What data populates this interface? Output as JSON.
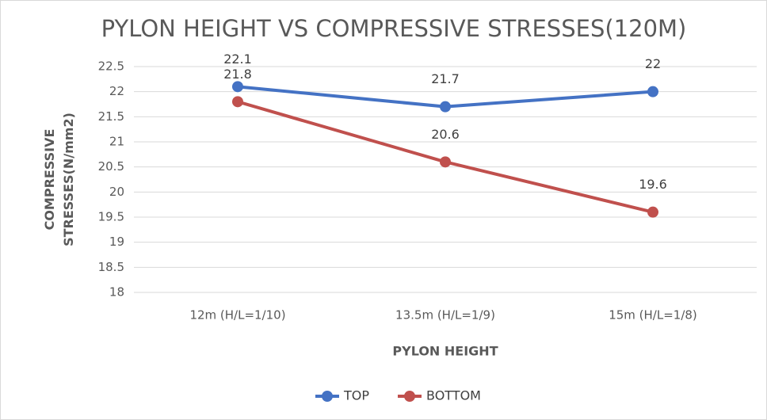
{
  "chart_data": {
    "type": "line",
    "title": "PYLON HEIGHT VS COMPRESSIVE STRESSES(120M)",
    "x_label": "PYLON HEIGHT",
    "y_label": "COMPRESSIVE STRESSES(N/mm2)",
    "categories": [
      "12m (H/L=1/10)",
      "13.5m (H/L=1/9)",
      "15m (H/L=1/8)"
    ],
    "series": [
      {
        "name": "TOP",
        "color": "#4472c4",
        "values": [
          22.1,
          21.7,
          22
        ]
      },
      {
        "name": "BOTTOM",
        "color": "#c0504d",
        "values": [
          21.8,
          20.6,
          19.6
        ]
      }
    ],
    "ylim": [
      18,
      22.5
    ],
    "yticks": [
      22.5,
      22,
      21.5,
      21,
      20.5,
      20,
      19.5,
      19,
      18.5,
      18
    ],
    "grid": true,
    "legend": "bottom"
  }
}
